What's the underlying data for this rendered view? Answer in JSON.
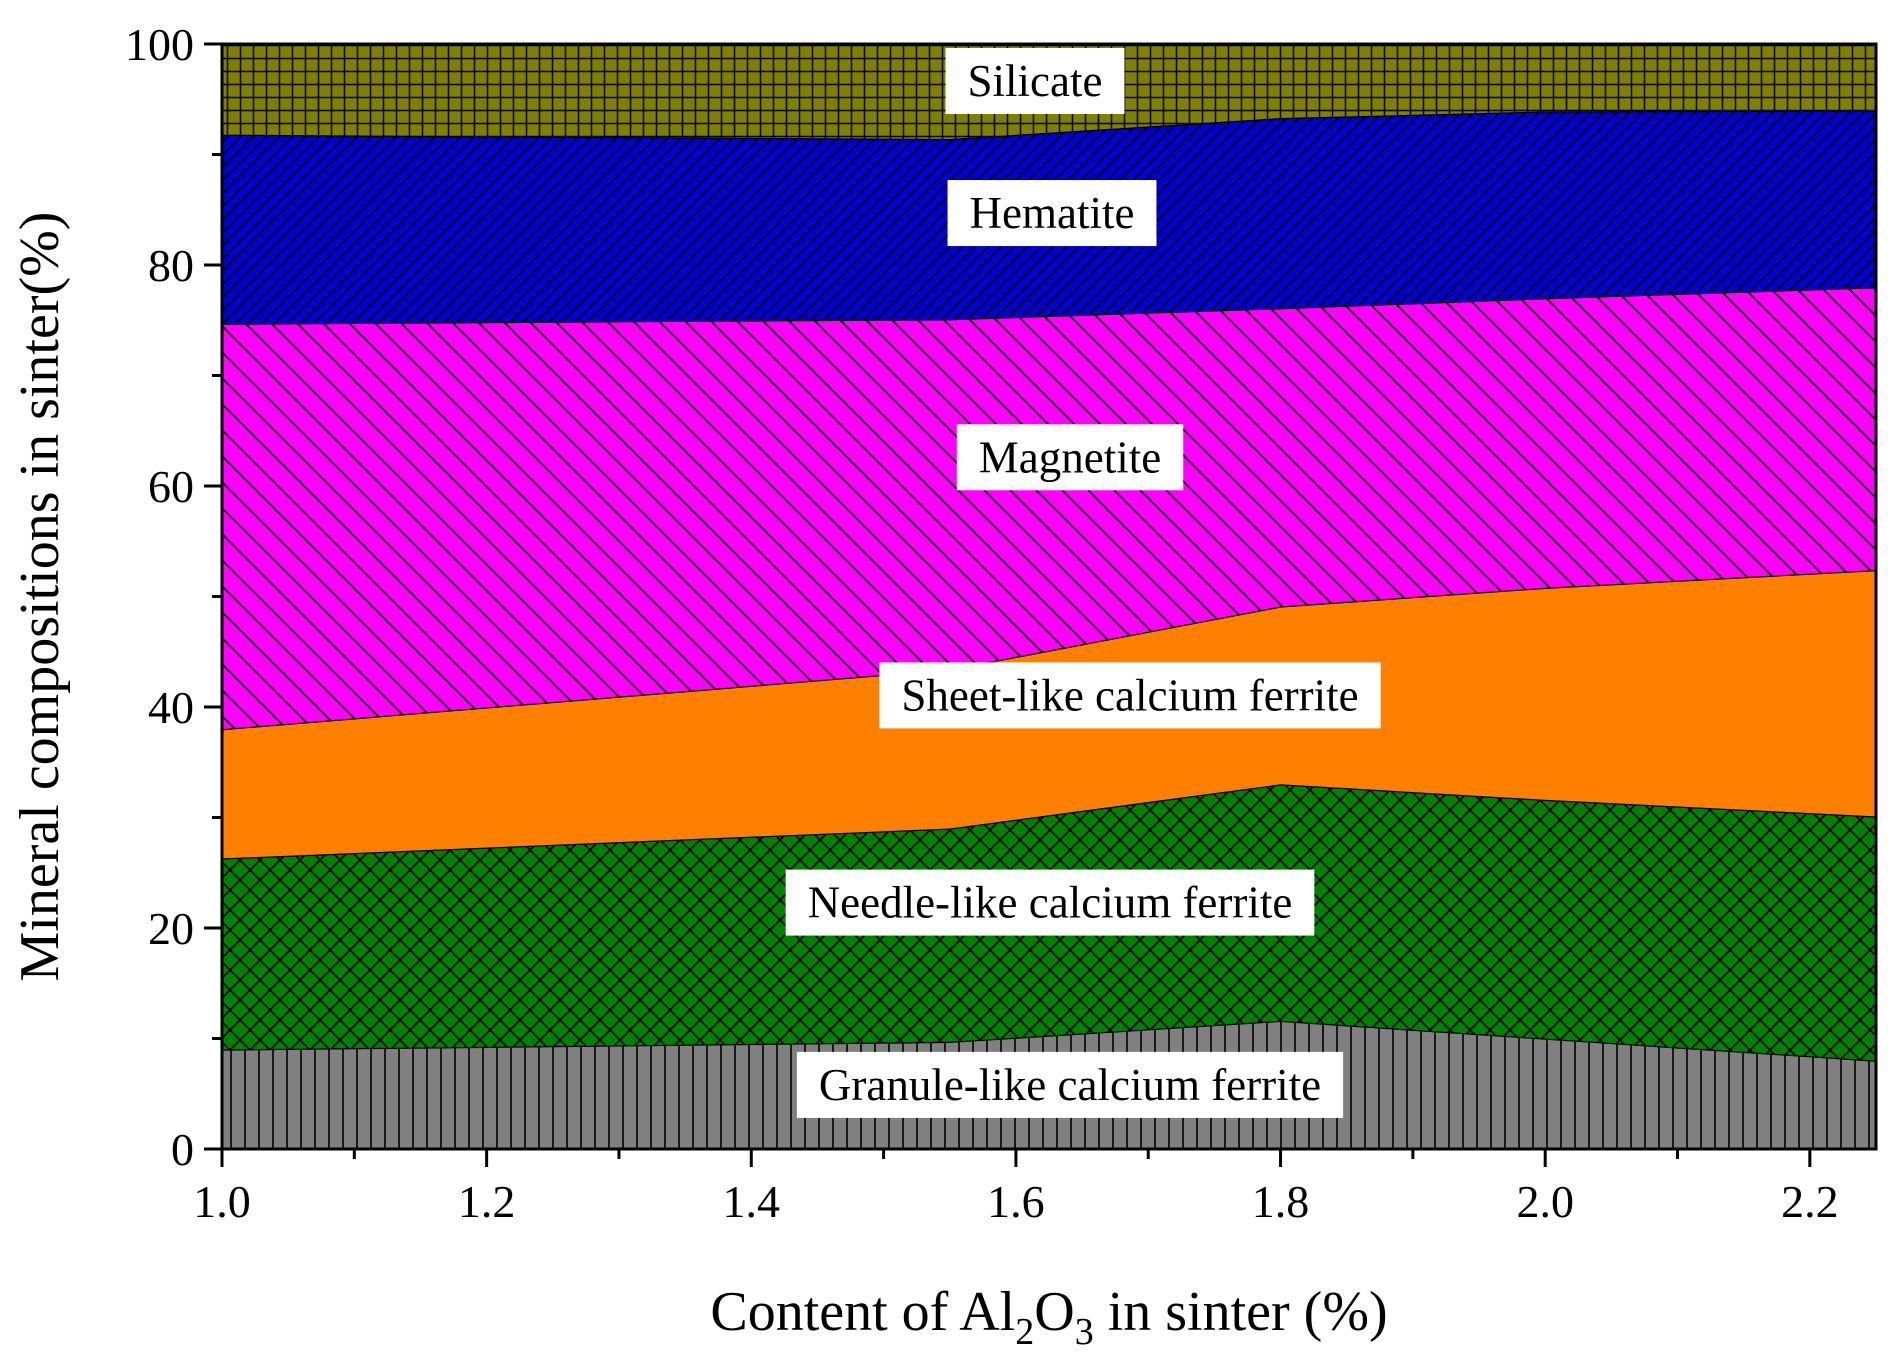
{
  "chart_data": {
    "type": "area",
    "stacked": true,
    "x": [
      1.0,
      1.55,
      1.8,
      2.0,
      2.25
    ],
    "xlim": [
      1.0,
      2.25
    ],
    "ylim": [
      0,
      100
    ],
    "x_ticks": [
      "1.0",
      "1.2",
      "1.4",
      "1.6",
      "1.8",
      "2.0",
      "2.2"
    ],
    "x_tick_values": [
      1.0,
      1.2,
      1.4,
      1.6,
      1.8,
      2.0,
      2.2
    ],
    "y_ticks": [
      "0",
      "20",
      "40",
      "60",
      "80",
      "100"
    ],
    "y_tick_values": [
      0,
      20,
      40,
      60,
      80,
      100
    ],
    "xlabel": {
      "pre": "Content of Al",
      "sub1": "2",
      "mid": "O",
      "sub2": "3",
      "post": " in sinter (%)"
    },
    "ylabel": "Mineral compositions in sinter(%)",
    "grid": false,
    "series": [
      {
        "name": "Granule-like calcium ferrite",
        "values": [
          9.0,
          9.7,
          11.6,
          10.0,
          8.0
        ],
        "color": "#808080",
        "pattern": "vertical"
      },
      {
        "name": "Needle-like calcium ferrite",
        "values": [
          17.3,
          19.3,
          21.4,
          21.6,
          22.1
        ],
        "color": "#008000",
        "pattern": "crosshatch"
      },
      {
        "name": "Sheet-like calcium ferrite",
        "values": [
          11.7,
          14.4,
          16.1,
          19.2,
          22.3
        ],
        "color": "#ff8000",
        "pattern": "none"
      },
      {
        "name": "Magnetite",
        "values": [
          36.7,
          31.7,
          27.0,
          26.2,
          25.6
        ],
        "color": "#ff00ff",
        "pattern": "backslash"
      },
      {
        "name": "Hematite",
        "values": [
          17.1,
          16.3,
          17.2,
          16.9,
          16.0
        ],
        "color": "#0000cc",
        "pattern": "slash"
      },
      {
        "name": "Silicate",
        "values": [
          8.2,
          8.6,
          6.7,
          6.1,
          6.0
        ],
        "color": "#808000",
        "pattern": "grid"
      }
    ]
  }
}
